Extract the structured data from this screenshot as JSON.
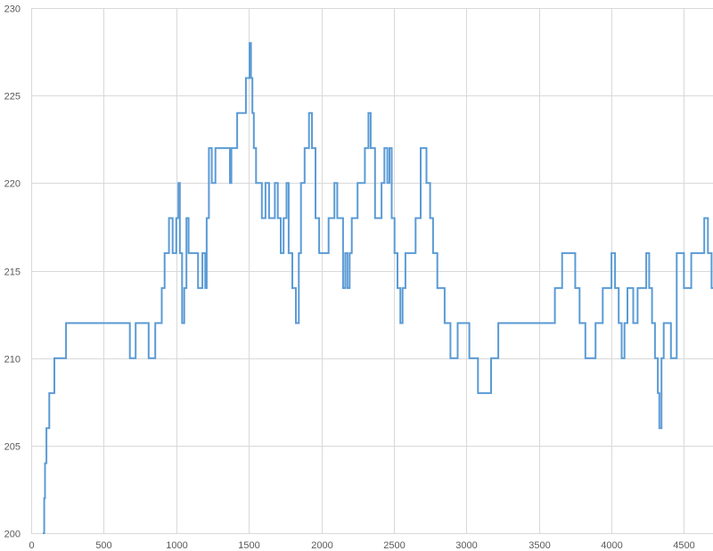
{
  "chart_data": {
    "type": "line",
    "xlim": [
      0,
      4700
    ],
    "ylim": [
      200,
      230
    ],
    "xticks": [
      0,
      500,
      1000,
      1500,
      2000,
      2500,
      3000,
      3500,
      4000,
      4500
    ],
    "yticks": [
      200,
      205,
      210,
      215,
      220,
      225,
      230
    ],
    "grid": true,
    "legend": "none",
    "series_color": "#5b9bd5",
    "series": [
      {
        "step": true,
        "points": [
          [
            80,
            200
          ],
          [
            90,
            202
          ],
          [
            95,
            204
          ],
          [
            105,
            206
          ],
          [
            125,
            208
          ],
          [
            160,
            210
          ],
          [
            240,
            212
          ],
          [
            680,
            210
          ],
          [
            720,
            212
          ],
          [
            810,
            210
          ],
          [
            855,
            212
          ],
          [
            900,
            214
          ],
          [
            920,
            216
          ],
          [
            950,
            218
          ],
          [
            975,
            216
          ],
          [
            1000,
            218
          ],
          [
            1015,
            220
          ],
          [
            1025,
            216
          ],
          [
            1040,
            212
          ],
          [
            1055,
            214
          ],
          [
            1070,
            218
          ],
          [
            1085,
            216
          ],
          [
            1110,
            216
          ],
          [
            1150,
            214
          ],
          [
            1180,
            216
          ],
          [
            1200,
            214
          ],
          [
            1210,
            218
          ],
          [
            1225,
            222
          ],
          [
            1245,
            220
          ],
          [
            1270,
            222
          ],
          [
            1370,
            220
          ],
          [
            1380,
            222
          ],
          [
            1420,
            224
          ],
          [
            1480,
            226
          ],
          [
            1505,
            228
          ],
          [
            1515,
            226
          ],
          [
            1525,
            224
          ],
          [
            1535,
            222
          ],
          [
            1550,
            220
          ],
          [
            1590,
            218
          ],
          [
            1615,
            220
          ],
          [
            1640,
            218
          ],
          [
            1680,
            220
          ],
          [
            1700,
            218
          ],
          [
            1720,
            216
          ],
          [
            1740,
            218
          ],
          [
            1760,
            220
          ],
          [
            1775,
            216
          ],
          [
            1800,
            214
          ],
          [
            1825,
            212
          ],
          [
            1845,
            216
          ],
          [
            1860,
            220
          ],
          [
            1885,
            222
          ],
          [
            1915,
            224
          ],
          [
            1935,
            222
          ],
          [
            1960,
            218
          ],
          [
            1985,
            216
          ],
          [
            2050,
            218
          ],
          [
            2090,
            220
          ],
          [
            2110,
            218
          ],
          [
            2150,
            214
          ],
          [
            2165,
            216
          ],
          [
            2180,
            214
          ],
          [
            2195,
            216
          ],
          [
            2210,
            218
          ],
          [
            2250,
            220
          ],
          [
            2300,
            222
          ],
          [
            2325,
            224
          ],
          [
            2340,
            222
          ],
          [
            2370,
            218
          ],
          [
            2415,
            220
          ],
          [
            2435,
            222
          ],
          [
            2455,
            220
          ],
          [
            2470,
            222
          ],
          [
            2485,
            218
          ],
          [
            2505,
            216
          ],
          [
            2525,
            214
          ],
          [
            2545,
            212
          ],
          [
            2560,
            214
          ],
          [
            2580,
            216
          ],
          [
            2650,
            218
          ],
          [
            2685,
            222
          ],
          [
            2705,
            222
          ],
          [
            2725,
            220
          ],
          [
            2750,
            218
          ],
          [
            2770,
            216
          ],
          [
            2800,
            214
          ],
          [
            2850,
            212
          ],
          [
            2890,
            210
          ],
          [
            2940,
            212
          ],
          [
            3020,
            210
          ],
          [
            3080,
            208
          ],
          [
            3170,
            210
          ],
          [
            3220,
            212
          ],
          [
            3610,
            214
          ],
          [
            3660,
            216
          ],
          [
            3750,
            214
          ],
          [
            3780,
            212
          ],
          [
            3820,
            210
          ],
          [
            3890,
            212
          ],
          [
            3940,
            214
          ],
          [
            4000,
            216
          ],
          [
            4025,
            214
          ],
          [
            4050,
            212
          ],
          [
            4070,
            210
          ],
          [
            4090,
            212
          ],
          [
            4110,
            214
          ],
          [
            4150,
            212
          ],
          [
            4180,
            214
          ],
          [
            4240,
            216
          ],
          [
            4260,
            214
          ],
          [
            4280,
            212
          ],
          [
            4300,
            210
          ],
          [
            4320,
            208
          ],
          [
            4330,
            206
          ],
          [
            4345,
            210
          ],
          [
            4360,
            212
          ],
          [
            4410,
            210
          ],
          [
            4450,
            216
          ],
          [
            4500,
            214
          ],
          [
            4550,
            216
          ],
          [
            4640,
            218
          ],
          [
            4665,
            216
          ],
          [
            4690,
            214
          ],
          [
            4700,
            214
          ]
        ]
      }
    ]
  }
}
